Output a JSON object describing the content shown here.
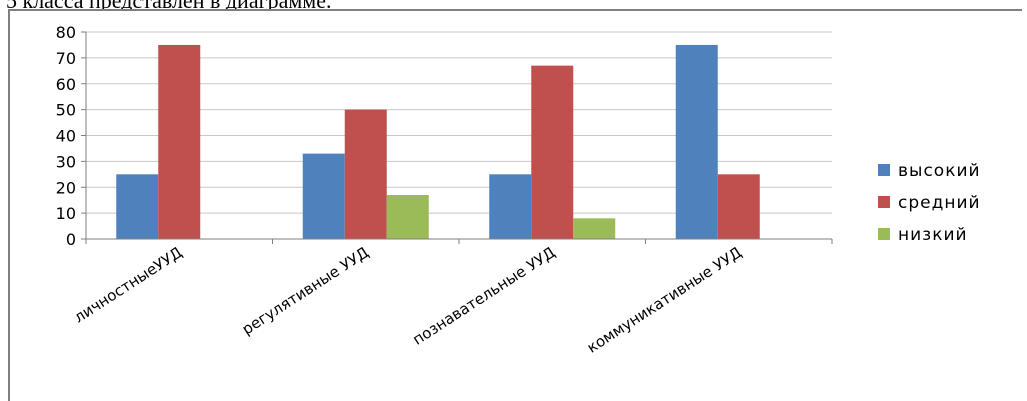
{
  "page": {
    "top_text": "5 класса представлен в диаграмме."
  },
  "chart_data": {
    "type": "bar",
    "title": "",
    "xlabel": "",
    "ylabel": "",
    "ylim": [
      0,
      80
    ],
    "yticks": [
      0,
      10,
      20,
      30,
      40,
      50,
      60,
      70,
      80
    ],
    "grid": true,
    "legend_position": "right",
    "categories": [
      "личностныеУУД",
      "регулятивные УУД",
      "познавательные УУД",
      "коммуникативные УУД"
    ],
    "series": [
      {
        "name": "высокий",
        "color": "#4f81bd",
        "values": [
          25,
          33,
          25,
          75
        ]
      },
      {
        "name": "средний",
        "color": "#c0504d",
        "values": [
          75,
          50,
          67,
          25
        ]
      },
      {
        "name": "низкий",
        "color": "#9bbb59",
        "values": [
          0,
          17,
          8,
          0
        ]
      }
    ]
  }
}
